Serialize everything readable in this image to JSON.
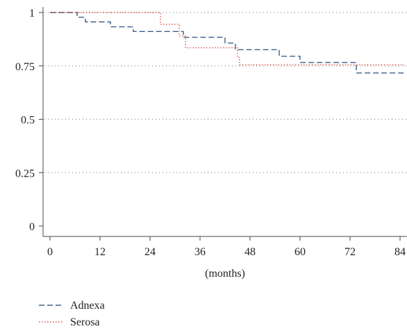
{
  "chart_data": {
    "type": "line",
    "xlabel": "(months)",
    "ylabel": "",
    "xlim": [
      -2,
      86
    ],
    "ylim": [
      0,
      1
    ],
    "x_ticks": [
      0,
      12,
      24,
      36,
      48,
      60,
      72,
      84
    ],
    "y_ticks": [
      0,
      0.25,
      0.5,
      0.75,
      1
    ],
    "y_tick_labels": [
      "0",
      "0.25",
      "0.5",
      "0.75",
      "1"
    ],
    "grid": true,
    "legend_position": "bottom-left",
    "series": [
      {
        "name": "Adnexa",
        "style": "dashed",
        "color": "#3a5f86",
        "points": [
          [
            0,
            1
          ],
          [
            6.5,
            1
          ],
          [
            6.5,
            0.978
          ],
          [
            8.5,
            0.978
          ],
          [
            8.5,
            0.956
          ],
          [
            14.5,
            0.956
          ],
          [
            14.5,
            0.933
          ],
          [
            20,
            0.933
          ],
          [
            20,
            0.911
          ],
          [
            32,
            0.911
          ],
          [
            32,
            0.884
          ],
          [
            42,
            0.884
          ],
          [
            42,
            0.857
          ],
          [
            44.5,
            0.857
          ],
          [
            44.5,
            0.826
          ],
          [
            55,
            0.826
          ],
          [
            55,
            0.795
          ],
          [
            60,
            0.795
          ],
          [
            60,
            0.766
          ],
          [
            73.5,
            0.766
          ],
          [
            73.5,
            0.717
          ],
          [
            85,
            0.717
          ]
        ]
      },
      {
        "name": "Serosa",
        "style": "dotted",
        "color": "#d9534f",
        "points": [
          [
            0,
            1
          ],
          [
            26.5,
            1
          ],
          [
            26.5,
            0.945
          ],
          [
            31,
            0.945
          ],
          [
            31,
            0.89
          ],
          [
            32.5,
            0.89
          ],
          [
            32.5,
            0.835
          ],
          [
            45,
            0.835
          ],
          [
            45,
            0.79
          ],
          [
            45.5,
            0.79
          ],
          [
            45.5,
            0.755
          ],
          [
            85,
            0.755
          ]
        ]
      }
    ]
  }
}
